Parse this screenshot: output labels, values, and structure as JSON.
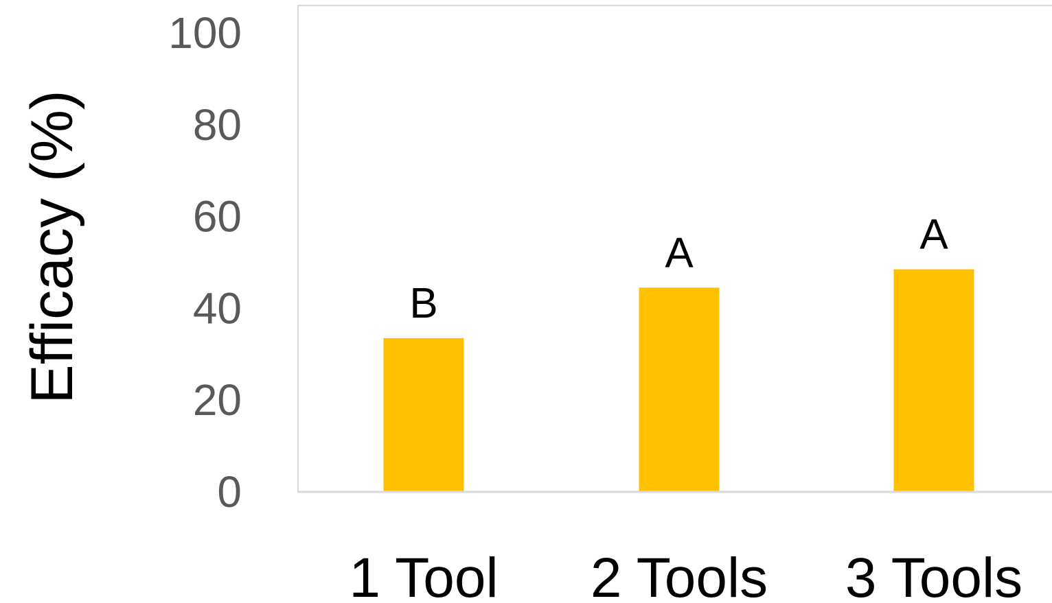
{
  "chart_data": {
    "type": "bar",
    "title": "",
    "xlabel": "",
    "ylabel": "Efficacy (%)",
    "ylim": [
      0,
      100
    ],
    "yticks": [
      "0",
      "20",
      "40",
      "60",
      "80",
      "100"
    ],
    "grid": false,
    "legend": "none",
    "categories": [
      "1 Tool",
      "2 Tools",
      "3 Tools"
    ],
    "series": [
      {
        "values": [
          33.5,
          44.5,
          48.5
        ],
        "labels": [
          "B",
          "A",
          "A"
        ],
        "color": "#FFC000"
      }
    ],
    "colors": {
      "bar": "#FFC000",
      "plot_border": "#D9D9D9",
      "tick_text": "#595959",
      "label_text": "#000000"
    }
  }
}
